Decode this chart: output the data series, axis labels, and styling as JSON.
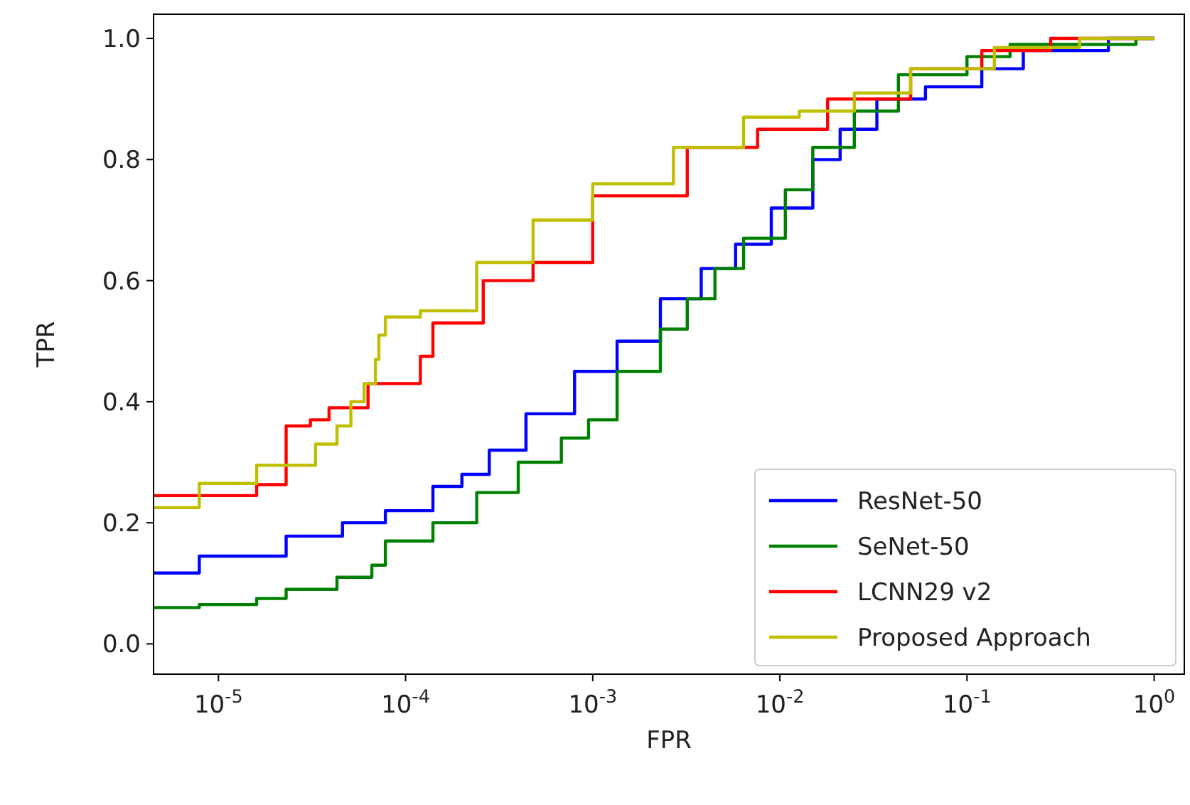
{
  "chart_data": {
    "type": "step",
    "xlabel": "FPR",
    "ylabel": "TPR",
    "log": "x",
    "xlim": [
      4.5e-06,
      1.45
    ],
    "ylim": [
      -0.05,
      1.04
    ],
    "xticks": [
      {
        "value": 1e-05,
        "label": "10$^{-5}$"
      },
      {
        "value": 0.0001,
        "label": "10$^{-4}$"
      },
      {
        "value": 0.001,
        "label": "10$^{-3}$"
      },
      {
        "value": 0.01,
        "label": "10$^{-2}$"
      },
      {
        "value": 0.1,
        "label": "10$^{-1}$"
      },
      {
        "value": 1,
        "label": "10$^{0}$"
      }
    ],
    "yticks": [
      {
        "value": 0,
        "label": "0.0"
      },
      {
        "value": 0.2,
        "label": "0.2"
      },
      {
        "value": 0.4,
        "label": "0.4"
      },
      {
        "value": 0.6,
        "label": "0.6"
      },
      {
        "value": 0.8,
        "label": "0.8"
      },
      {
        "value": 1,
        "label": "1.0"
      }
    ],
    "grid": false,
    "legend": "bottom right",
    "line_style": "solid",
    "series": [
      {
        "name": "ResNet-50",
        "color": "#0000ff",
        "x": [
          4.5e-06,
          7.9e-06,
          2.3e-05,
          4.6e-05,
          7.8e-05,
          0.00014,
          0.0002,
          0.00028,
          0.00044,
          0.0008,
          0.00135,
          0.0023,
          0.0038,
          0.0058,
          0.009,
          0.015,
          0.021,
          0.033,
          0.06,
          0.12,
          0.2,
          0.57,
          1.0
        ],
        "values": [
          0.117,
          0.145,
          0.178,
          0.2,
          0.22,
          0.26,
          0.28,
          0.32,
          0.38,
          0.45,
          0.5,
          0.57,
          0.62,
          0.66,
          0.72,
          0.8,
          0.85,
          0.9,
          0.92,
          0.95,
          0.98,
          1.0,
          1.0
        ]
      },
      {
        "name": "SeNet-50",
        "color": "#008000",
        "x": [
          4.5e-06,
          7.9e-06,
          1.6e-05,
          2.3e-05,
          4.3e-05,
          6.6e-05,
          7.8e-05,
          0.00014,
          0.00024,
          0.0004,
          0.00068,
          0.00095,
          0.00135,
          0.0023,
          0.0032,
          0.0045,
          0.0064,
          0.0107,
          0.015,
          0.025,
          0.043,
          0.1,
          0.17,
          0.4,
          0.8,
          1.0
        ],
        "values": [
          0.06,
          0.065,
          0.075,
          0.09,
          0.11,
          0.13,
          0.17,
          0.2,
          0.25,
          0.3,
          0.34,
          0.37,
          0.45,
          0.52,
          0.57,
          0.62,
          0.67,
          0.75,
          0.82,
          0.88,
          0.94,
          0.97,
          0.99,
          0.99,
          1.0,
          1.0
        ]
      },
      {
        "name": "LCNN29 v2",
        "color": "#ff0000",
        "x": [
          4.5e-06,
          1.6e-05,
          2.3e-05,
          3.1e-05,
          3.9e-05,
          6.3e-05,
          0.00012,
          0.00014,
          0.00026,
          0.00048,
          0.001,
          0.0032,
          0.0076,
          0.018,
          0.05,
          0.12,
          0.28,
          1.0
        ],
        "values": [
          0.245,
          0.263,
          0.36,
          0.37,
          0.39,
          0.43,
          0.475,
          0.53,
          0.6,
          0.63,
          0.74,
          0.82,
          0.85,
          0.9,
          0.95,
          0.98,
          1.0,
          1.0
        ]
      },
      {
        "name": "Proposed Approach",
        "color": "#bfbf00",
        "x": [
          4.5e-06,
          7.9e-06,
          1.6e-05,
          3.3e-05,
          4.3e-05,
          5.1e-05,
          6e-05,
          6.9e-05,
          7.2e-05,
          7.8e-05,
          0.00012,
          0.00024,
          0.00048,
          0.001,
          0.0027,
          0.0064,
          0.0127,
          0.025,
          0.05,
          0.14,
          0.4,
          1.0
        ],
        "values": [
          0.225,
          0.265,
          0.295,
          0.33,
          0.36,
          0.4,
          0.43,
          0.47,
          0.51,
          0.54,
          0.55,
          0.63,
          0.7,
          0.76,
          0.82,
          0.87,
          0.88,
          0.91,
          0.95,
          0.985,
          1.0,
          1.0
        ]
      }
    ]
  }
}
